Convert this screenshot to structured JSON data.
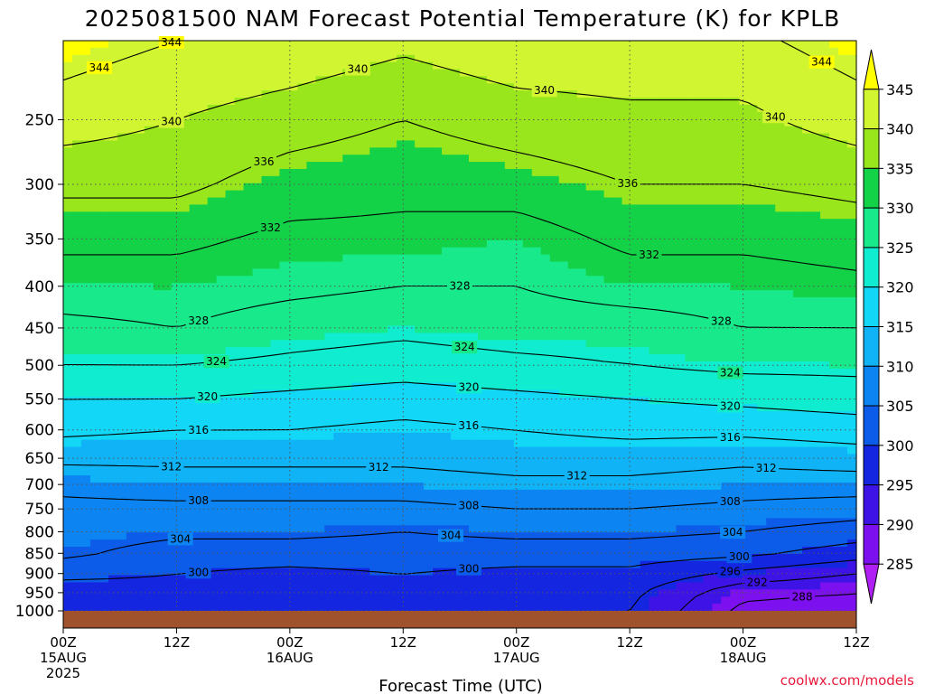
{
  "title": "2025081500 NAM Forecast Potential Temperature (K) for KPLB",
  "xlabel": "Forecast Time (UTC)",
  "credit": "coolwx.com/models",
  "x_ticks": [
    {
      "hour": 0,
      "lines": [
        "00Z",
        "15AUG",
        "2025"
      ]
    },
    {
      "hour": 12,
      "lines": [
        "12Z"
      ]
    },
    {
      "hour": 24,
      "lines": [
        "00Z",
        "16AUG"
      ]
    },
    {
      "hour": 36,
      "lines": [
        "12Z"
      ]
    },
    {
      "hour": 48,
      "lines": [
        "00Z",
        "17AUG"
      ]
    },
    {
      "hour": 60,
      "lines": [
        "12Z"
      ]
    },
    {
      "hour": 72,
      "lines": [
        "00Z",
        "18AUG"
      ]
    },
    {
      "hour": 84,
      "lines": [
        "12Z"
      ]
    }
  ],
  "y_ticks": [
    "250",
    "300",
    "350",
    "400",
    "450",
    "500",
    "550",
    "600",
    "650",
    "700",
    "750",
    "800",
    "850",
    "900",
    "950",
    "1000"
  ],
  "colorbar": {
    "labels": [
      "345",
      "340",
      "335",
      "330",
      "325",
      "320",
      "315",
      "310",
      "305",
      "300",
      "295",
      "290",
      "285"
    ],
    "bins": [
      {
        "min": 345,
        "color": "#ffff00"
      },
      {
        "min": 340,
        "color": "#d2f532"
      },
      {
        "min": 335,
        "color": "#99e61c"
      },
      {
        "min": 330,
        "color": "#14d247"
      },
      {
        "min": 325,
        "color": "#18e98a"
      },
      {
        "min": 320,
        "color": "#10ecd0"
      },
      {
        "min": 315,
        "color": "#12d7f6"
      },
      {
        "min": 310,
        "color": "#10b3f5"
      },
      {
        "min": 305,
        "color": "#0c84f2"
      },
      {
        "min": 300,
        "color": "#0c5ce9"
      },
      {
        "min": 295,
        "color": "#1426e0"
      },
      {
        "min": 290,
        "color": "#3e14e6"
      },
      {
        "min": 285,
        "color": "#7c10ee"
      },
      {
        "min": 0,
        "color": "#b020f5"
      }
    ]
  },
  "ground_color": "#a0522d",
  "chart_data": {
    "type": "heatmap",
    "title": "2025081500 NAM Forecast Potential Temperature (K) for KPLB",
    "xlabel": "Forecast Time (UTC)",
    "ylabel": "",
    "x_unit": "forecast hour",
    "xlim": [
      0,
      84
    ],
    "y_unit": "pressure (hPa)",
    "ylim": [
      1000,
      200
    ],
    "contour_interval_K": 4,
    "x": [
      0,
      12,
      24,
      36,
      48,
      60,
      72,
      84
    ],
    "pressure_levels": [
      1000,
      950,
      900,
      850,
      800,
      750,
      700,
      650,
      600,
      550,
      500,
      450,
      400,
      350,
      300,
      250,
      200
    ],
    "theta_K": [
      [
        297,
        298,
        301,
        305,
        306,
        307,
        309,
        313,
        317,
        320,
        324,
        327,
        330,
        333,
        337,
        342,
        346
      ],
      [
        298,
        299,
        300,
        302,
        305,
        307,
        310,
        313,
        316,
        320,
        324,
        328,
        330,
        333,
        337,
        340,
        344
      ],
      [
        297,
        298,
        299,
        302,
        305,
        307,
        310,
        313,
        316,
        319,
        323,
        326,
        329,
        331,
        334,
        338,
        343
      ],
      [
        298,
        299,
        300,
        302,
        304,
        307,
        310,
        313,
        315,
        318,
        322,
        325,
        328,
        331,
        333,
        336,
        341
      ],
      [
        298,
        297,
        299,
        302,
        305,
        308,
        311,
        314,
        316,
        319,
        323,
        326,
        328,
        330,
        334,
        338,
        343
      ],
      [
        296,
        297,
        299,
        302,
        305,
        308,
        311,
        314,
        317,
        320,
        324,
        326,
        330,
        333,
        336,
        339,
        343
      ],
      [
        287,
        289,
        295,
        301,
        304,
        307,
        310,
        313,
        317,
        321,
        325,
        328,
        330,
        333,
        336,
        339,
        343
      ],
      [
        286,
        288,
        292,
        298,
        302,
        306,
        310,
        314,
        318,
        322,
        325,
        328,
        331,
        334,
        337,
        342,
        346
      ]
    ],
    "contour_labels": [
      "340",
      "344",
      "344",
      "344",
      "340",
      "340",
      "340",
      "336",
      "336",
      "332",
      "332",
      "328",
      "328",
      "328",
      "324",
      "324",
      "324",
      "320",
      "320",
      "320",
      "316",
      "316",
      "316",
      "312",
      "312",
      "312",
      "312",
      "308",
      "308",
      "308",
      "304",
      "304",
      "304",
      "300",
      "300",
      "300",
      "296",
      "292",
      "288"
    ]
  }
}
